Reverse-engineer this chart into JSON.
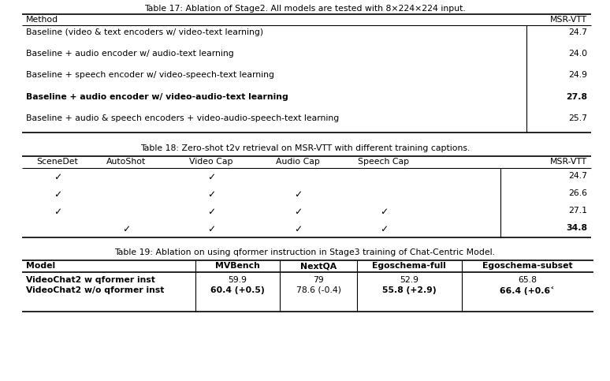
{
  "bg_color": "#ffffff",
  "title17": "Table 17: Ablation of Stage2. All models are tested with 8×224×224 input.",
  "title18": "Table 18: Zero-shot t2v retrieval on MSR-VTT with different training captions.",
  "title19": "Table 19: Ablation on using qformer instruction in Stage3 training of Chat-Centric Model.",
  "t17_header": [
    "Method",
    "MSR-VTT"
  ],
  "t17_rows": [
    [
      "Baseline (video & text encoders w/ video-text learning)",
      "24.7",
      false
    ],
    [
      "Baseline + audio encoder w/ audio-text learning",
      "24.0",
      false
    ],
    [
      "Baseline + speech encoder w/ video-speech-text learning",
      "24.9",
      false
    ],
    [
      "Baseline + audio encoder w/ video-audio-text learning",
      "27.8",
      true
    ],
    [
      "Baseline + audio & speech encoders + video-audio-speech-text learning",
      "25.7",
      false
    ]
  ],
  "t18_header": [
    "SceneDet",
    "AutoShot",
    "Video Cap",
    "Audio Cap",
    "Speech Cap",
    "MSR-VTT"
  ],
  "t18_rows": [
    [
      true,
      false,
      true,
      false,
      false,
      "24.7",
      false
    ],
    [
      true,
      false,
      true,
      true,
      false,
      "26.6",
      false
    ],
    [
      true,
      false,
      true,
      true,
      true,
      "27.1",
      false
    ],
    [
      false,
      true,
      true,
      true,
      true,
      "34.8",
      true
    ]
  ],
  "t19_header": [
    "Model",
    "MVBench",
    "NextQA",
    "Egoschema-full",
    "Egoschema-subset"
  ],
  "t19_rows": [
    [
      "VideoChat2 w qformer inst",
      "59.9",
      "79",
      "52.9",
      "65.8",
      false,
      false,
      false,
      false
    ],
    [
      "VideoChat2 w/o qformer inst",
      "60.4 (+0.5)",
      "78.6 (-0.4)",
      "55.8 (+2.9)",
      "66.4 (+0.6˂",
      false,
      true,
      false,
      true
    ]
  ],
  "check": "✓",
  "fs": 7.8
}
